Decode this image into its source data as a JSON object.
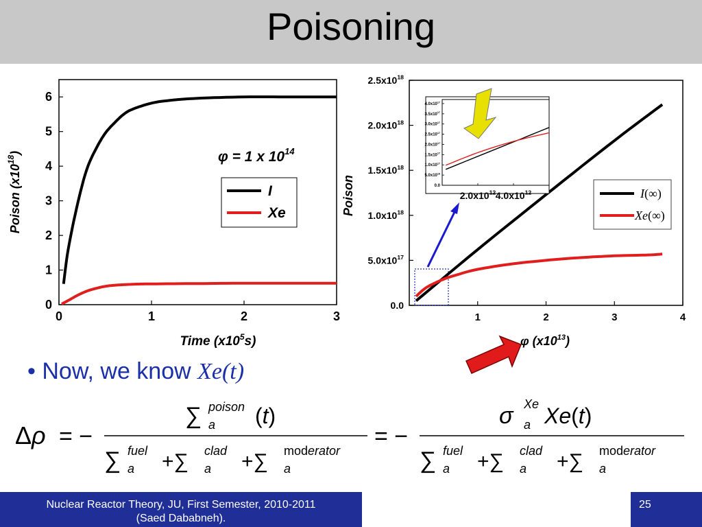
{
  "slide": {
    "title": "Poisoning",
    "bullet_prefix": "Now, we know ",
    "bullet_math": "Xe(t)",
    "footer_line1": "Nuclear Reactor Theory, JU, First Semester, 2010-2011",
    "footer_line2": "(Saed Dababneh).",
    "page_number": "25"
  },
  "colors": {
    "title_bar": "#c8c8c8",
    "footer": "#1f2f97",
    "series_I": "#000000",
    "series_Xe": "#e01e1e",
    "bullet_text": "#1a2fa8"
  },
  "chart_data": [
    {
      "type": "line",
      "annotation": "φ = 1 x 10^14",
      "xlabel": "Time (x10^5 s)",
      "ylabel": "Poison (x10^18)",
      "xlim": [
        0,
        3
      ],
      "ylim": [
        0,
        6.5
      ],
      "xticks": [
        "0",
        "1",
        "2",
        "3"
      ],
      "yticks": [
        "0",
        "1",
        "2",
        "3",
        "4",
        "5",
        "6"
      ],
      "legend": "upper-right",
      "series": [
        {
          "name": "I",
          "x": [
            0.05,
            0.1,
            0.2,
            0.3,
            0.4,
            0.5,
            0.6,
            0.7,
            0.8,
            1.0,
            1.2,
            1.5,
            2.0,
            2.5,
            3.0
          ],
          "values": [
            0.6,
            1.6,
            2.9,
            3.9,
            4.5,
            4.95,
            5.25,
            5.5,
            5.65,
            5.82,
            5.9,
            5.96,
            6.0,
            6.0,
            6.0
          ]
        },
        {
          "name": "Xe",
          "x": [
            0.03,
            0.1,
            0.2,
            0.3,
            0.4,
            0.5,
            0.6,
            0.8,
            1.0,
            1.5,
            2.0,
            2.5,
            3.0
          ],
          "values": [
            0.02,
            0.12,
            0.27,
            0.39,
            0.47,
            0.53,
            0.56,
            0.59,
            0.6,
            0.61,
            0.62,
            0.62,
            0.62
          ]
        }
      ]
    },
    {
      "type": "line",
      "xlabel": "φ (x10^13)",
      "ylabel": "Poison",
      "xlim": [
        0,
        4
      ],
      "ylim": [
        0,
        2.5e+18
      ],
      "xticks": [
        "1",
        "2",
        "3",
        "4"
      ],
      "yticks": [
        "0.0",
        "5.0x10^17",
        "1.0x10^18",
        "1.5x10^18",
        "2.0x10^18",
        "2.5x10^18"
      ],
      "legend": "right",
      "series": [
        {
          "name": "I(∞)",
          "x": [
            0.1,
            1.0,
            2.0,
            3.0,
            3.7
          ],
          "values": [
            5e+16,
            6.2e+17,
            1.23e+18,
            1.83e+18,
            2.23e+18
          ]
        },
        {
          "name": "Xe(∞)",
          "x": [
            0.1,
            0.2,
            0.3,
            0.5,
            0.7,
            1.0,
            1.5,
            2.0,
            2.5,
            3.0,
            3.5,
            3.7
          ],
          "values": [
            1e+17,
            1.7e+17,
            2.2e+17,
            2.9e+17,
            3.4e+17,
            4e+17,
            4.6e+17,
            5e+17,
            5.3e+17,
            5.5e+17,
            5.6e+17,
            5.7e+17
          ]
        }
      ],
      "inset": {
        "xticks": [
          "2.0x10^12",
          "4.0x10^12"
        ],
        "yticks": [
          "0.0",
          "5.0x10^16",
          "1.0x10^17",
          "1.5x10^17",
          "2.0x10^17",
          "2.5x10^17",
          "3.0x10^17",
          "3.5x10^17",
          "4.0x10^17"
        ],
        "xlim": [
          0,
          6000000000000.0
        ],
        "ylim": [
          0,
          4.2e+17
        ],
        "series": [
          {
            "name": "I(∞)",
            "x": [
              200000000000.0,
              6000000000000.0
            ],
            "values": [
              7.8e+16,
              2.83e+17
            ]
          },
          {
            "name": "Xe(∞)",
            "x": [
              200000000000.0,
              2000000000000.0,
              4000000000000.0,
              6000000000000.0
            ],
            "values": [
              9.8e+16,
              1.6e+17,
              2.15e+17,
              2.57e+17
            ]
          }
        ]
      }
    }
  ]
}
